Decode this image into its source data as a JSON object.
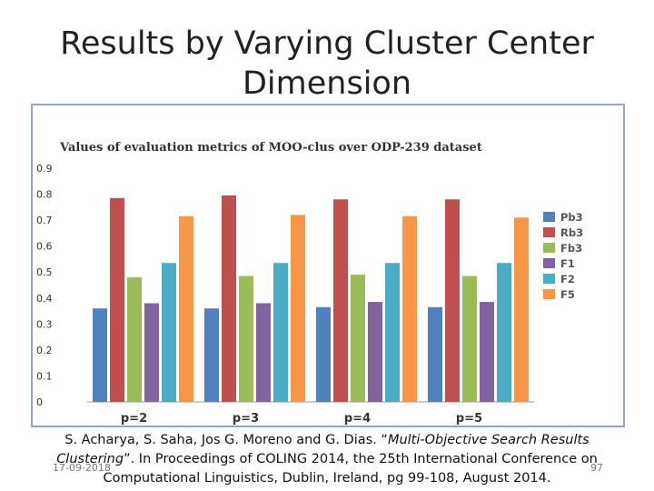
{
  "slide": {
    "title_line1": "Results by Varying Cluster Center",
    "title_line2": "Dimension",
    "citation": {
      "prefix": "S. Acharya, S. Saha, Jos G. Moreno and G. Dias. “",
      "italic": "Multi-Objective Search Results Clustering",
      "suffix": "”. In Proceedings of COLING 2014, the 25th International Conference on Computational Linguistics, Dublin, Ireland, pg 99-108, August 2014."
    },
    "date": "17-09-2018",
    "page_number": "97"
  },
  "chart_data": {
    "type": "bar",
    "title": "Values of evaluation metrics of MOO-clus over ODP-239 dataset",
    "categories": [
      "p=2",
      "p=3",
      "p=4",
      "p=5"
    ],
    "ylim": [
      0,
      0.9
    ],
    "yticks": [
      "0",
      "0.1",
      "0.2",
      "0.3",
      "0.4",
      "0.5",
      "0.6",
      "0.7",
      "0.8",
      "0.9"
    ],
    "grid": false,
    "legend_position": "right",
    "series": [
      {
        "name": "Pb3",
        "color": "#4f81bd",
        "values": [
          0.36,
          0.36,
          0.365,
          0.365
        ]
      },
      {
        "name": "Rb3",
        "color": "#c0504d",
        "values": [
          0.785,
          0.795,
          0.78,
          0.78
        ]
      },
      {
        "name": "Fb3",
        "color": "#9bbb59",
        "values": [
          0.48,
          0.485,
          0.49,
          0.485
        ]
      },
      {
        "name": "F1",
        "color": "#8064a2",
        "values": [
          0.38,
          0.38,
          0.385,
          0.385
        ]
      },
      {
        "name": "F2",
        "color": "#4bacc6",
        "values": [
          0.535,
          0.535,
          0.535,
          0.535
        ]
      },
      {
        "name": "F5",
        "color": "#f79646",
        "values": [
          0.715,
          0.72,
          0.715,
          0.71
        ]
      }
    ]
  }
}
